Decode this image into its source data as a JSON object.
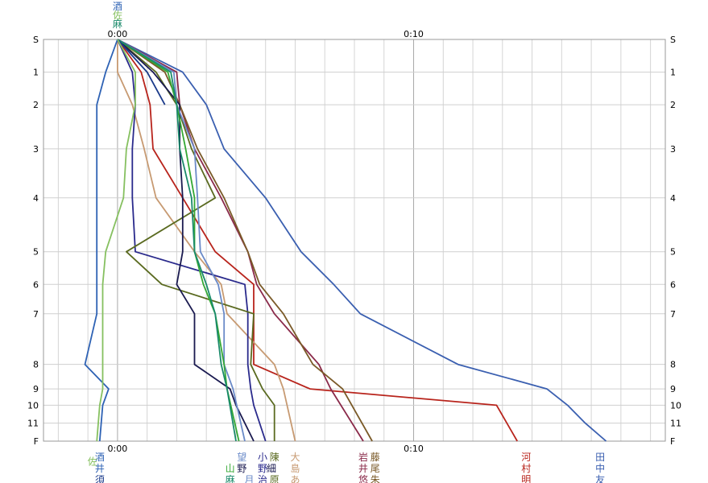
{
  "chart_data": {
    "type": "line",
    "title": "",
    "xlabel": "",
    "ylabel": "",
    "xlim": [
      -2.5,
      18.5
    ],
    "grid": true,
    "x_major_tick_labels": [
      {
        "value": 0,
        "label": "0:00"
      },
      {
        "value": 10,
        "label": "0:10"
      }
    ],
    "y_categories": [
      "S",
      "1",
      "2",
      "3",
      "4",
      "5",
      "6",
      "7",
      "8",
      "9",
      "10",
      "11",
      "F"
    ],
    "y_positions": [
      0,
      1,
      2,
      3.35,
      4.85,
      6.5,
      7.5,
      8.4,
      9.95,
      10.7,
      11.2,
      11.75,
      12.3
    ],
    "series": [
      {
        "name": "田中友",
        "color": "#3a5fb0",
        "label_x": 16.5,
        "points": [
          [
            0,
            0
          ],
          [
            2.2,
            1
          ],
          [
            3,
            2
          ],
          [
            3.6,
            3.35
          ],
          [
            5,
            4.85
          ],
          [
            6.2,
            6.5
          ],
          [
            7.3,
            7.5
          ],
          [
            8.2,
            8.4
          ],
          [
            11.5,
            9.95
          ],
          [
            14.5,
            10.7
          ],
          [
            15.2,
            11.2
          ],
          [
            15.8,
            11.75
          ],
          [
            16.5,
            12.3
          ]
        ]
      },
      {
        "name": "河村明",
        "color": "#b8241c",
        "label_x": 13.5,
        "points": [
          [
            0,
            0
          ],
          [
            0.8,
            1
          ],
          [
            1.1,
            2
          ],
          [
            1.2,
            3.35
          ],
          [
            2.2,
            4.85
          ],
          [
            3.3,
            6.5
          ],
          [
            4.6,
            7.5
          ],
          [
            4.6,
            8.4
          ],
          [
            4.6,
            9.95
          ],
          [
            6.5,
            10.7
          ],
          [
            12.8,
            11.2
          ],
          [
            13.5,
            12.3
          ]
        ]
      },
      {
        "name": "岩井悠",
        "color": "#8a2a4a",
        "label_x": 8.3,
        "points": [
          [
            0,
            0
          ],
          [
            2,
            1
          ],
          [
            2.1,
            2
          ],
          [
            2.6,
            3.35
          ],
          [
            3.5,
            4.85
          ],
          [
            4.4,
            6.5
          ],
          [
            4.7,
            7.5
          ],
          [
            5.3,
            8.4
          ],
          [
            6.8,
            9.95
          ],
          [
            7.2,
            10.7
          ],
          [
            8.3,
            12.3
          ]
        ]
      },
      {
        "name": "藤尾朱",
        "color": "#7a5a28",
        "label_x": 8.6,
        "points": [
          [
            0,
            0
          ],
          [
            1.6,
            1
          ],
          [
            2.1,
            2
          ],
          [
            2.7,
            3.35
          ],
          [
            3.6,
            4.85
          ],
          [
            4.4,
            6.5
          ],
          [
            4.8,
            7.5
          ],
          [
            5.6,
            8.4
          ],
          [
            6.6,
            9.95
          ],
          [
            7.6,
            10.7
          ],
          [
            8.6,
            12.3
          ]
        ]
      },
      {
        "name": "大島あ",
        "color": "#c79a72",
        "label_x": 6,
        "points": [
          [
            0,
            0
          ],
          [
            0,
            1
          ],
          [
            0.5,
            2
          ],
          [
            0.9,
            3.35
          ],
          [
            1.3,
            4.85
          ],
          [
            2.6,
            6.5
          ],
          [
            3.5,
            7.5
          ],
          [
            3.7,
            8.4
          ],
          [
            5.3,
            9.95
          ],
          [
            5.6,
            10.7
          ],
          [
            6,
            12.3
          ]
        ]
      },
      {
        "name": "小野治",
        "color": "#2a2a8c",
        "label_x": 5,
        "points": [
          [
            0,
            0
          ],
          [
            0.5,
            1
          ],
          [
            0.6,
            2
          ],
          [
            0.5,
            3.35
          ],
          [
            0.5,
            4.85
          ],
          [
            0.6,
            6.5
          ],
          [
            4.3,
            7.5
          ],
          [
            4.4,
            8.4
          ],
          [
            4.4,
            9.95
          ],
          [
            4.5,
            10.7
          ],
          [
            4.6,
            11.2
          ],
          [
            5,
            12.3
          ]
        ]
      },
      {
        "name": "陳原",
        "color": "#5a6a20",
        "label_x": 5.3,
        "points": [
          [
            0,
            0
          ],
          [
            1.3,
            1
          ],
          [
            2,
            2
          ],
          [
            2.5,
            3.35
          ],
          [
            3.3,
            4.85
          ],
          [
            0.3,
            6.5
          ],
          [
            1.5,
            7.5
          ],
          [
            4.6,
            8.4
          ],
          [
            4.5,
            9.95
          ],
          [
            4.9,
            10.7
          ],
          [
            5.3,
            11.2
          ],
          [
            5.3,
            12.3
          ]
        ]
      },
      {
        "name": "細野",
        "color": "#1a1a50",
        "label_x": 4.6,
        "points": [
          [
            0,
            0
          ],
          [
            1.2,
            1
          ],
          [
            2.1,
            2
          ],
          [
            2.1,
            3.35
          ],
          [
            2.2,
            4.85
          ],
          [
            2.2,
            6.5
          ],
          [
            2,
            7.5
          ],
          [
            2.6,
            8.4
          ],
          [
            2.6,
            9.95
          ],
          [
            3.8,
            10.7
          ],
          [
            4,
            11.2
          ],
          [
            4.6,
            12.3
          ]
        ]
      },
      {
        "name": "望月",
        "color": "#6a8ac8",
        "label_x": 4.3,
        "points": [
          [
            0,
            0
          ],
          [
            1.9,
            1
          ],
          [
            2,
            2
          ],
          [
            2.6,
            3.35
          ],
          [
            2.7,
            4.85
          ],
          [
            2.8,
            6.5
          ],
          [
            3.4,
            7.5
          ],
          [
            3.6,
            8.4
          ],
          [
            3.6,
            9.95
          ],
          [
            3.9,
            10.7
          ],
          [
            4.3,
            12.3
          ]
        ]
      },
      {
        "name": "山",
        "color": "#34a834",
        "label_x": 4.1,
        "points": [
          [
            0,
            0
          ],
          [
            1.7,
            1
          ],
          [
            2,
            2
          ],
          [
            2.3,
            3.35
          ],
          [
            2.6,
            4.85
          ],
          [
            2.6,
            6.5
          ],
          [
            2.9,
            7.5
          ],
          [
            3.3,
            8.4
          ],
          [
            3.6,
            9.95
          ],
          [
            3.7,
            10.7
          ],
          [
            4.1,
            12.3
          ]
        ]
      },
      {
        "name": "麻",
        "color": "#1a8a6a",
        "label_x": 4,
        "points": [
          [
            0,
            0
          ],
          [
            1.8,
            1
          ],
          [
            2,
            2
          ],
          [
            2.1,
            3.35
          ],
          [
            2.5,
            4.85
          ],
          [
            2.6,
            6.5
          ],
          [
            3,
            7.5
          ],
          [
            3.3,
            8.4
          ],
          [
            3.5,
            9.95
          ],
          [
            3.7,
            10.7
          ],
          [
            4,
            12.3
          ]
        ]
      },
      {
        "name": "須",
        "color": "#1a3a8a",
        "label_x": -0.6,
        "points": [
          [
            0,
            0
          ],
          [
            1,
            1
          ],
          [
            1.6,
            2
          ]
        ]
      },
      {
        "name": "酒井",
        "color": "#2e62b4",
        "label_x": -0.6,
        "points": [
          [
            0,
            0
          ],
          [
            -0.4,
            1
          ],
          [
            -0.7,
            2
          ],
          [
            -0.7,
            3.35
          ],
          [
            -0.7,
            4.85
          ],
          [
            -0.7,
            6.5
          ],
          [
            -0.7,
            7.5
          ],
          [
            -0.7,
            8.4
          ],
          [
            -1.1,
            9.95
          ],
          [
            -0.3,
            10.7
          ],
          [
            -0.5,
            11.2
          ],
          [
            -0.6,
            12.3
          ]
        ]
      },
      {
        "name": "佐",
        "color": "#86c060",
        "label_x": -0.7,
        "points": [
          [
            0,
            0
          ],
          [
            0.6,
            1
          ],
          [
            0.6,
            2
          ],
          [
            0.3,
            3.35
          ],
          [
            0.2,
            4.85
          ],
          [
            -0.4,
            6.5
          ],
          [
            -0.5,
            7.5
          ],
          [
            -0.5,
            8.4
          ],
          [
            -0.5,
            9.95
          ],
          [
            -0.5,
            10.7
          ],
          [
            -0.6,
            11.2
          ],
          [
            -0.7,
            12.3
          ]
        ]
      }
    ],
    "bottom_labels": [
      {
        "text": "田",
        "x": 16.3,
        "row": 0,
        "color": "#3a5fb0"
      },
      {
        "text": "中",
        "x": 16.3,
        "row": 1,
        "color": "#3a5fb0"
      },
      {
        "text": "友",
        "x": 16.3,
        "row": 2,
        "color": "#3a5fb0"
      },
      {
        "text": "河",
        "x": 13.8,
        "row": 0,
        "color": "#b8241c"
      },
      {
        "text": "村",
        "x": 13.8,
        "row": 1,
        "color": "#b8241c"
      },
      {
        "text": "明",
        "x": 13.8,
        "row": 2,
        "color": "#b8241c"
      },
      {
        "text": "岩",
        "x": 8.3,
        "row": 0,
        "color": "#8a2a4a"
      },
      {
        "text": "井",
        "x": 8.3,
        "row": 1,
        "color": "#8a2a4a"
      },
      {
        "text": "悠",
        "x": 8.3,
        "row": 2,
        "color": "#8a2a4a"
      },
      {
        "text": "藤",
        "x": 8.7,
        "row": 0,
        "color": "#7a5a28"
      },
      {
        "text": "尾",
        "x": 8.7,
        "row": 1,
        "color": "#7a5a28"
      },
      {
        "text": "朱",
        "x": 8.7,
        "row": 2,
        "color": "#7a5a28"
      },
      {
        "text": "大",
        "x": 6,
        "row": 0,
        "color": "#c79a72"
      },
      {
        "text": "島",
        "x": 6,
        "row": 1,
        "color": "#c79a72"
      },
      {
        "text": "あ",
        "x": 6,
        "row": 2,
        "color": "#c79a72"
      },
      {
        "text": "小",
        "x": 4.9,
        "row": 0,
        "color": "#2a2a8c"
      },
      {
        "text": "野",
        "x": 4.9,
        "row": 1,
        "color": "#2a2a8c"
      },
      {
        "text": "治",
        "x": 4.9,
        "row": 2,
        "color": "#2a2a8c"
      },
      {
        "text": "陳",
        "x": 5.3,
        "row": 0,
        "color": "#5a6a20"
      },
      {
        "text": "原",
        "x": 5.3,
        "row": 2,
        "color": "#5a6a20"
      },
      {
        "text": "細",
        "x": 5.2,
        "row": 1,
        "color": "#1a1a50"
      },
      {
        "text": "望",
        "x": 4.2,
        "row": 0,
        "color": "#6a8ac8"
      },
      {
        "text": "月",
        "x": 4.45,
        "row": 2,
        "color": "#6a8ac8"
      },
      {
        "text": "野",
        "x": 4.2,
        "row": 1,
        "color": "#1a1a50"
      },
      {
        "text": "山",
        "x": 3.8,
        "row": 1,
        "color": "#34a834"
      },
      {
        "text": "麻",
        "x": 3.8,
        "row": 2,
        "color": "#1a8a6a"
      },
      {
        "text": "酒",
        "x": -0.6,
        "row": 0,
        "color": "#2e62b4"
      },
      {
        "text": "井",
        "x": -0.6,
        "row": 1,
        "color": "#2e62b4"
      },
      {
        "text": "須",
        "x": -0.6,
        "row": 2,
        "color": "#1a3a8a"
      },
      {
        "text": "佐",
        "x": -0.85,
        "row": 0.4,
        "color": "#86c060"
      }
    ],
    "top_start_labels": [
      {
        "text": "酒",
        "color": "#2e62b4"
      },
      {
        "text": "佐",
        "color": "#86c060"
      },
      {
        "text": "麻",
        "color": "#1a8a6a"
      }
    ]
  }
}
